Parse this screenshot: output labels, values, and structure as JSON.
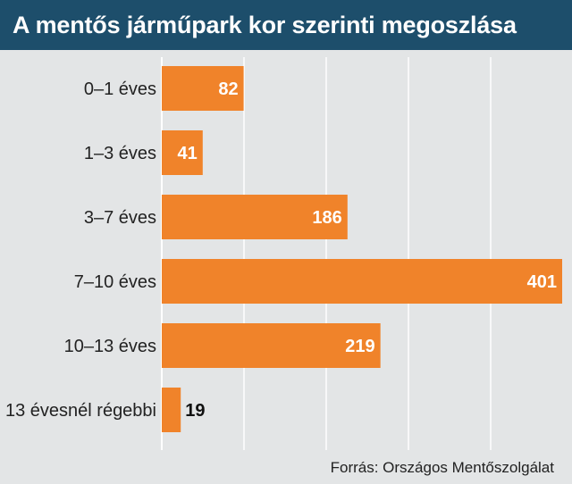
{
  "header": {
    "title": "A mentős járműpark kor szerinti megoszlása"
  },
  "chart_data": {
    "type": "bar",
    "orientation": "horizontal",
    "title": "A mentős járműpark kor szerinti megoszlása",
    "categories": [
      "0–1 éves",
      "1–3 éves",
      "3–7 éves",
      "7–10 éves",
      "10–13 éves",
      "13 évesnél régebbi"
    ],
    "values": [
      82,
      41,
      186,
      401,
      219,
      19
    ],
    "data_labels": [
      "82",
      "41",
      "186",
      "401",
      "219",
      "19"
    ],
    "xlim": [
      0,
      401
    ],
    "grid": "vertical",
    "legend": "none"
  },
  "footer": {
    "source": "Forrás: Országos Mentőszolgálat"
  },
  "colors": {
    "header_bg": "#1d4e6b",
    "bar": "#f0832a",
    "background": "#e3e5e6",
    "grid": "#ffffff"
  }
}
